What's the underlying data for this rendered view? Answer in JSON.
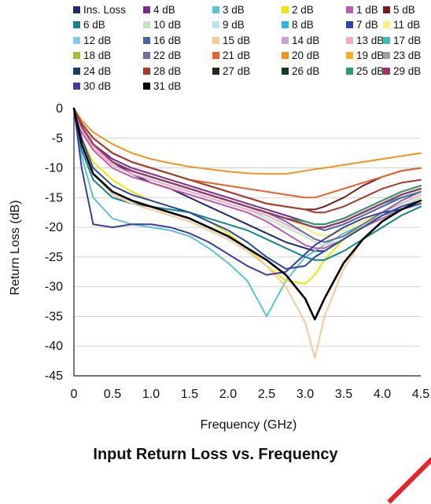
{
  "chart_data": {
    "type": "line",
    "title": "Input Return Loss vs. Frequency",
    "xlabel": "Frequency (GHz)",
    "ylabel": "Return Loss (dB)",
    "xlim": [
      0,
      4.5
    ],
    "ylim": [
      -45,
      0
    ],
    "x_ticks": [
      "0",
      "0.5",
      "1.0",
      "1.5",
      "2.0",
      "2.5",
      "3.0",
      "3.5",
      "4.0",
      "4.5"
    ],
    "y_ticks": [
      "0",
      "-5",
      "-10",
      "-15",
      "-20",
      "-25",
      "-30",
      "-35",
      "-40",
      "-45"
    ],
    "grid": "horizontal",
    "legend_position": "top",
    "x": [
      0,
      0.1,
      0.25,
      0.5,
      0.75,
      1.0,
      1.25,
      1.5,
      1.75,
      2.0,
      2.25,
      2.5,
      2.75,
      3.0,
      3.125,
      3.25,
      3.5,
      3.75,
      4.0,
      4.25,
      4.5
    ],
    "series": [
      {
        "name": "Ins. Loss",
        "color": "#1f2a6e",
        "values": [
          0,
          -3,
          -6,
          -9,
          -11,
          -12.5,
          -13.5,
          -15,
          -16.5,
          -18,
          -19.5,
          -21,
          -22.5,
          -23.5,
          -24,
          -24,
          -22,
          -20,
          -18,
          -16.5,
          -15
        ]
      },
      {
        "name": "4 dB",
        "color": "#7b2b8b",
        "values": [
          0,
          -3,
          -6,
          -8.5,
          -10,
          -11,
          -12,
          -13,
          -14,
          -15,
          -16,
          -17,
          -18,
          -19,
          -19.5,
          -19.5,
          -18.5,
          -17,
          -15.5,
          -14,
          -13
        ]
      },
      {
        "name": "3 dB",
        "color": "#5bc4d4",
        "values": [
          0,
          -8,
          -15,
          -18.5,
          -19.5,
          -20,
          -20.5,
          -21.5,
          -23.5,
          -26,
          -29,
          -35,
          -29,
          -25,
          -24,
          -23,
          -21,
          -19.5,
          -18,
          -17,
          -15.5
        ]
      },
      {
        "name": "2 dB",
        "color": "#f2e600",
        "values": [
          0,
          -5,
          -9,
          -12,
          -14,
          -15.5,
          -16.5,
          -17.5,
          -19,
          -21,
          -23.5,
          -26.5,
          -29,
          -29.5,
          -28,
          -25.5,
          -22,
          -19.5,
          -18,
          -16.5,
          -15
        ]
      },
      {
        "name": "1 dB",
        "color": "#c05aa5",
        "values": [
          0,
          -4,
          -7,
          -10,
          -11.5,
          -12.5,
          -13.5,
          -14.5,
          -15.5,
          -16.5,
          -17.5,
          -19,
          -21,
          -23,
          -23.5,
          -23.5,
          -22,
          -20,
          -18.5,
          -17,
          -16
        ]
      },
      {
        "name": "5 dB",
        "color": "#7a1c1c",
        "values": [
          0,
          -2.5,
          -5,
          -7.5,
          -9,
          -10,
          -11,
          -12,
          -13,
          -14,
          -15,
          -16,
          -16.5,
          -17,
          -17,
          -16.5,
          -15,
          -13,
          -11.5,
          -10.5,
          -10
        ]
      },
      {
        "name": "6 dB",
        "color": "#11868c",
        "values": [
          0,
          -7,
          -12,
          -15,
          -16,
          -16.5,
          -17,
          -17.5,
          -18.5,
          -19.5,
          -20.5,
          -22,
          -23.5,
          -25,
          -25.5,
          -25.5,
          -24,
          -22,
          -20,
          -18,
          -16.5
        ]
      },
      {
        "name": "10 dB",
        "color": "#c5e3c0",
        "values": [
          0,
          -3.5,
          -6.5,
          -9.5,
          -11,
          -12,
          -13,
          -14,
          -15,
          -16,
          -17,
          -18.5,
          -20,
          -21.5,
          -22.5,
          -23,
          -22,
          -20,
          -18,
          -16.5,
          -15
        ]
      },
      {
        "name": "9 dB",
        "color": "#bde3ef",
        "values": [
          0,
          -3,
          -6,
          -9,
          -10.5,
          -11.5,
          -12.5,
          -13.5,
          -14.5,
          -15.5,
          -16.5,
          -18,
          -19.5,
          -21,
          -22,
          -22.5,
          -21.5,
          -19.5,
          -17.5,
          -16,
          -14.5
        ]
      },
      {
        "name": "8 dB",
        "color": "#2eb3ea",
        "values": [
          0,
          -3,
          -6,
          -9,
          -10.5,
          -11.5,
          -12.5,
          -13.5,
          -14.5,
          -15.5,
          -16.5,
          -17.5,
          -18.5,
          -19.5,
          -20,
          -20,
          -19,
          -17.5,
          -16,
          -15,
          -14
        ]
      },
      {
        "name": "7 dB",
        "color": "#2348a5",
        "values": [
          0,
          -5,
          -10,
          -13,
          -14.5,
          -15.5,
          -16.5,
          -17.5,
          -19,
          -20.5,
          -22.5,
          -25,
          -27,
          -26.5,
          -25,
          -24,
          -22,
          -20,
          -18,
          -16.5,
          -15.5
        ]
      },
      {
        "name": "11 dB",
        "color": "#f6f27a",
        "values": [
          0,
          -3,
          -6,
          -9,
          -10.5,
          -11.5,
          -12.5,
          -13.5,
          -14.5,
          -15.5,
          -16.5,
          -17.5,
          -18.5,
          -20,
          -21,
          -21.5,
          -20.5,
          -19,
          -17.5,
          -16,
          -14.5
        ]
      },
      {
        "name": "12 dB",
        "color": "#7ecbef",
        "values": [
          0,
          -3,
          -6,
          -9,
          -10.5,
          -11.5,
          -12.5,
          -13.5,
          -14.5,
          -15.5,
          -16.5,
          -17.5,
          -18.5,
          -19.5,
          -20,
          -20,
          -19,
          -17.5,
          -16,
          -14.5,
          -13.5
        ]
      },
      {
        "name": "16 dB",
        "color": "#4a62a8",
        "values": [
          0,
          -3,
          -6,
          -9,
          -10.5,
          -11.5,
          -12.5,
          -13.5,
          -14.5,
          -15.5,
          -16.5,
          -17.5,
          -18.5,
          -19.5,
          -20,
          -20.5,
          -19.5,
          -18,
          -16.5,
          -15,
          -14
        ]
      },
      {
        "name": "15 dB",
        "color": "#f7c89a",
        "values": [
          0,
          -6,
          -11,
          -14.5,
          -16,
          -17,
          -18,
          -19,
          -20.5,
          -22,
          -24,
          -26.5,
          -30,
          -36,
          -42,
          -35,
          -27,
          -22,
          -19,
          -17,
          -15.5
        ]
      },
      {
        "name": "14 dB",
        "color": "#c3a3d4",
        "values": [
          0,
          -3,
          -6,
          -9,
          -10.5,
          -11.5,
          -12.5,
          -13.5,
          -14.5,
          -15.5,
          -16.5,
          -17.5,
          -18.5,
          -19.5,
          -20,
          -20,
          -19,
          -17.5,
          -16,
          -14.5,
          -13.5
        ]
      },
      {
        "name": "13 dB",
        "color": "#f4a9c8",
        "values": [
          0,
          -3.5,
          -6.5,
          -9.5,
          -11,
          -12,
          -13,
          -14,
          -15,
          -16,
          -17,
          -18,
          -19.5,
          -21,
          -22,
          -22.5,
          -21.5,
          -19.5,
          -17.5,
          -16,
          -14.5
        ]
      },
      {
        "name": "17 dB",
        "color": "#3dbdb1",
        "values": [
          0,
          -3,
          -6,
          -9,
          -10.5,
          -11.5,
          -12.5,
          -13.5,
          -14.5,
          -15.5,
          -16.5,
          -17.5,
          -18.5,
          -19,
          -19.5,
          -19.5,
          -18.5,
          -17,
          -15.5,
          -14,
          -13
        ]
      },
      {
        "name": "18 dB",
        "color": "#9bc43b",
        "values": [
          0,
          -3,
          -6,
          -9,
          -10.5,
          -11.5,
          -12.5,
          -13.5,
          -14.5,
          -15.5,
          -16.5,
          -17.5,
          -18.5,
          -19.5,
          -20,
          -20,
          -19,
          -17.5,
          -16,
          -14.5,
          -13.5
        ]
      },
      {
        "name": "22 dB",
        "color": "#6a6fa0",
        "values": [
          0,
          -3,
          -6,
          -9,
          -10.5,
          -11.5,
          -12.5,
          -13.5,
          -14.5,
          -15.5,
          -16.5,
          -17.5,
          -19,
          -21,
          -22,
          -22.5,
          -21.5,
          -19.5,
          -17.5,
          -15.5,
          -14
        ]
      },
      {
        "name": "21 dB",
        "color": "#e8632a",
        "values": [
          0,
          -2.5,
          -5,
          -7.5,
          -9,
          -10,
          -11,
          -12,
          -12.5,
          -13,
          -13.5,
          -14,
          -14.5,
          -15,
          -15,
          -14.5,
          -13.5,
          -12.5,
          -11.5,
          -10.5,
          -10
        ]
      },
      {
        "name": "20 dB",
        "color": "#f39421",
        "values": [
          0,
          -2,
          -4,
          -6,
          -7.5,
          -8.5,
          -9.2,
          -9.8,
          -10.2,
          -10.6,
          -10.9,
          -11,
          -11,
          -10.5,
          -10.2,
          -10,
          -9.5,
          -9,
          -8.5,
          -8,
          -7.5
        ]
      },
      {
        "name": "19 dB",
        "color": "#f5b21a",
        "values": [
          0,
          -3,
          -6,
          -9,
          -10.5,
          -11.5,
          -12.5,
          -13.5,
          -14.5,
          -15.5,
          -16.5,
          -17.5,
          -18.5,
          -19,
          -19.5,
          -19.5,
          -18.5,
          -17,
          -15.5,
          -14,
          -13
        ]
      },
      {
        "name": "23 dB",
        "color": "#9e9e9e",
        "values": [
          0,
          -3,
          -6,
          -9,
          -10.5,
          -11.5,
          -12.5,
          -13.5,
          -14.5,
          -15.5,
          -16.5,
          -17.5,
          -18.5,
          -19.5,
          -20,
          -20,
          -19,
          -17.5,
          -16,
          -14.5,
          -13.5
        ]
      },
      {
        "name": "24 dB",
        "color": "#1c3b6e",
        "values": [
          0,
          -3,
          -6,
          -9,
          -10.5,
          -11.5,
          -12.5,
          -13.5,
          -14.5,
          -15.5,
          -16.5,
          -17.5,
          -18.5,
          -19.5,
          -20,
          -20,
          -19,
          -17.5,
          -16,
          -14.5,
          -13.5
        ]
      },
      {
        "name": "28 dB",
        "color": "#a83a2a",
        "values": [
          0,
          -2.5,
          -5,
          -7.5,
          -9,
          -10,
          -11,
          -12,
          -13,
          -14,
          -15,
          -16,
          -16.5,
          -17,
          -17.5,
          -17.5,
          -16.5,
          -15,
          -13.5,
          -12.5,
          -12
        ]
      },
      {
        "name": "27 dB",
        "color": "#26281a",
        "values": [
          0,
          -3,
          -6,
          -9,
          -10.5,
          -11.5,
          -12.5,
          -13.5,
          -14.5,
          -15.5,
          -16.5,
          -17.5,
          -18.5,
          -19.5,
          -20,
          -20,
          -19,
          -17.5,
          -16,
          -14.5,
          -13.5
        ]
      },
      {
        "name": "26 dB",
        "color": "#1a3a22",
        "values": [
          0,
          -3,
          -6,
          -9,
          -10.5,
          -11.5,
          -12.5,
          -13.5,
          -14.5,
          -15.5,
          -16.5,
          -17.5,
          -18.5,
          -19.5,
          -20,
          -20,
          -19,
          -17.5,
          -16,
          -14.5,
          -13.5
        ]
      },
      {
        "name": "25 dB",
        "color": "#2a9a6e",
        "values": [
          0,
          -3,
          -6,
          -9,
          -10.5,
          -11.5,
          -12.5,
          -13.5,
          -14.5,
          -15.5,
          -16.5,
          -17.5,
          -18.5,
          -19,
          -19.5,
          -19.5,
          -18.5,
          -17,
          -15.5,
          -14,
          -13
        ]
      },
      {
        "name": "29 dB",
        "color": "#a3336a",
        "values": [
          0,
          -3,
          -6,
          -9,
          -10.5,
          -11.5,
          -12.5,
          -13.5,
          -14.5,
          -15.5,
          -16.5,
          -17.5,
          -18.5,
          -19.5,
          -20,
          -20,
          -19,
          -17.5,
          -16,
          -14.5,
          -13.5
        ]
      },
      {
        "name": "30 dB",
        "color": "#3c3ca8",
        "values": [
          0,
          -10,
          -19.5,
          -20,
          -19.5,
          -19.5,
          -20,
          -21,
          -22.5,
          -24.5,
          -26.5,
          -28,
          -27.5,
          -24.5,
          -23,
          -22,
          -20,
          -18.5,
          -17.5,
          -17,
          -16
        ]
      },
      {
        "name": "31 dB",
        "color": "#000000",
        "values": [
          0,
          -6,
          -11,
          -14,
          -15.5,
          -16.5,
          -17.5,
          -18.5,
          -20,
          -21.5,
          -23.5,
          -25.5,
          -28,
          -32,
          -35.5,
          -32,
          -26,
          -22,
          -19,
          -17,
          -15.5
        ]
      }
    ]
  }
}
